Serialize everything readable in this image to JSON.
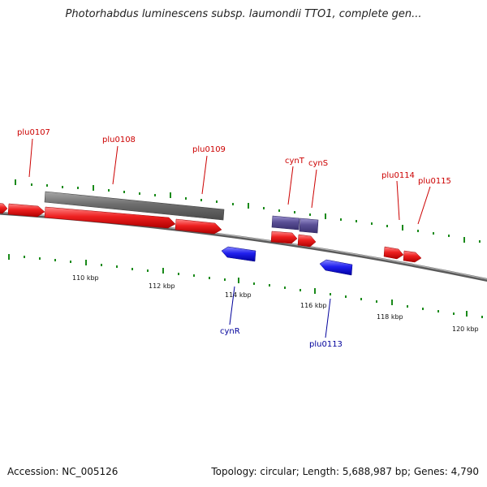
{
  "title": "Photorhabdus luminescens subsp. laumondii TTO1, complete gen...",
  "footer": {
    "accession": "Accession: NC_005126",
    "summary": "Topology: circular; Length: 5,688,987 bp; Genes: 4,790"
  },
  "colors": {
    "forward_gene": "#e8181f",
    "reverse_gene": "#1a1aee",
    "rna_gene": "#5a4f96",
    "region": "#6d6d6d",
    "backbone": "#7a7a7a",
    "tick": "#1a8a1a",
    "forward_label": "#cc0000",
    "reverse_label": "#00009b"
  },
  "scale_labels": [
    "110 kbp",
    "112 kbp",
    "114 kbp",
    "116 kbp",
    "118 kbp",
    "120 kbp"
  ],
  "gene_labels": {
    "plu0107": "plu0107",
    "plu0108": "plu0108",
    "plu0109": "plu0109",
    "cynT": "cynT",
    "cynS": "cynS",
    "plu0114": "plu0114",
    "plu0115": "plu0115",
    "cynR": "cynR",
    "plu0113": "plu0113"
  }
}
